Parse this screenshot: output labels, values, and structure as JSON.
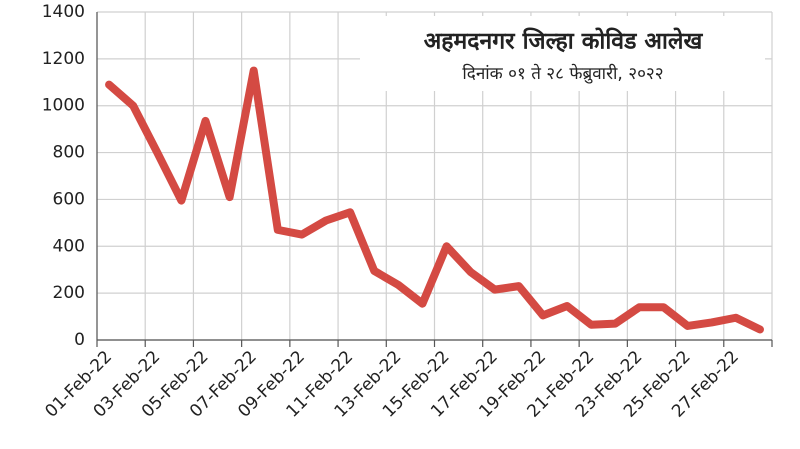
{
  "chart_data": {
    "type": "line",
    "title": "अहमदनगर जिल्हा कोविड आलेख",
    "subtitle": "दिनांक ०१ ते २८ फेब्रुवारी, २०२२",
    "categories": [
      "01-Feb-22",
      null,
      "03-Feb-22",
      null,
      "05-Feb-22",
      null,
      "07-Feb-22",
      null,
      "09-Feb-22",
      null,
      "11-Feb-22",
      null,
      "13-Feb-22",
      null,
      "15-Feb-22",
      null,
      "17-Feb-22",
      null,
      "19-Feb-22",
      null,
      "21-Feb-22",
      null,
      "23-Feb-22",
      null,
      "25-Feb-22",
      null,
      "27-Feb-22",
      null
    ],
    "series": [
      {
        "color": "#d44a43",
        "values": [
          1090,
          1000,
          800,
          595,
          935,
          610,
          1150,
          470,
          450,
          510,
          545,
          295,
          235,
          155,
          400,
          290,
          215,
          230,
          105,
          145,
          65,
          70,
          140,
          140,
          60,
          75,
          95,
          45
        ]
      }
    ],
    "ylim": [
      0,
      1400
    ],
    "yticks": [
      0,
      200,
      400,
      600,
      800,
      1000,
      1200,
      1400
    ],
    "grid": true
  }
}
